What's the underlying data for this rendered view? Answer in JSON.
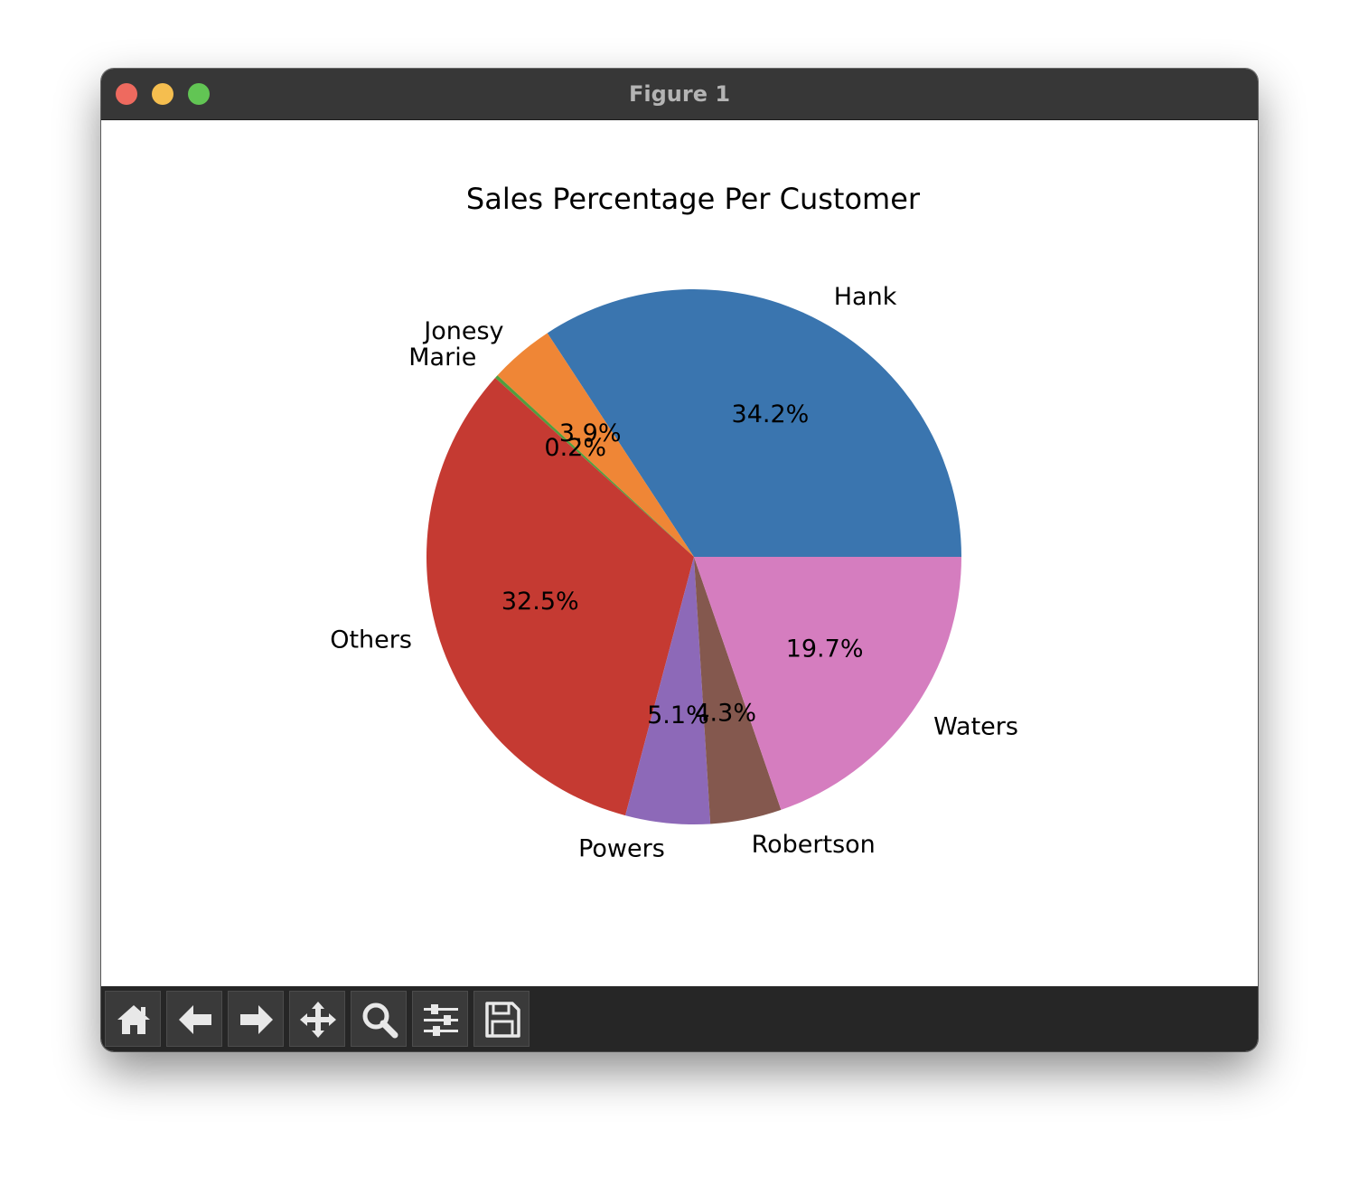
{
  "window": {
    "title": "Figure 1"
  },
  "toolbar": {
    "items": [
      {
        "name": "home-button",
        "icon": "home-icon"
      },
      {
        "name": "back-button",
        "icon": "arrow-left-icon"
      },
      {
        "name": "forward-button",
        "icon": "arrow-right-icon"
      },
      {
        "name": "pan-button",
        "icon": "move-icon"
      },
      {
        "name": "zoom-button",
        "icon": "magnifier-icon"
      },
      {
        "name": "configure-subplots-button",
        "icon": "sliders-icon"
      },
      {
        "name": "save-button",
        "icon": "floppy-disk-icon"
      }
    ]
  },
  "chart_data": {
    "type": "pie",
    "title": "Sales Percentage Per Customer",
    "labels": [
      "Hank",
      "Jonesy",
      "Marie",
      "Others",
      "Powers",
      "Robertson",
      "Waters"
    ],
    "values": [
      34.2,
      3.9,
      0.2,
      32.5,
      5.1,
      4.3,
      19.7
    ],
    "value_labels": [
      "34.2%",
      "3.9%",
      "0.2%",
      "32.5%",
      "5.1%",
      "4.3%",
      "19.7%"
    ],
    "colors": [
      "#3a75af",
      "#ef8636",
      "#519e3e",
      "#c53a32",
      "#8d69b8",
      "#84584e",
      "#d57dbf"
    ],
    "start_angle_deg": 0,
    "direction": "counterclockwise"
  }
}
